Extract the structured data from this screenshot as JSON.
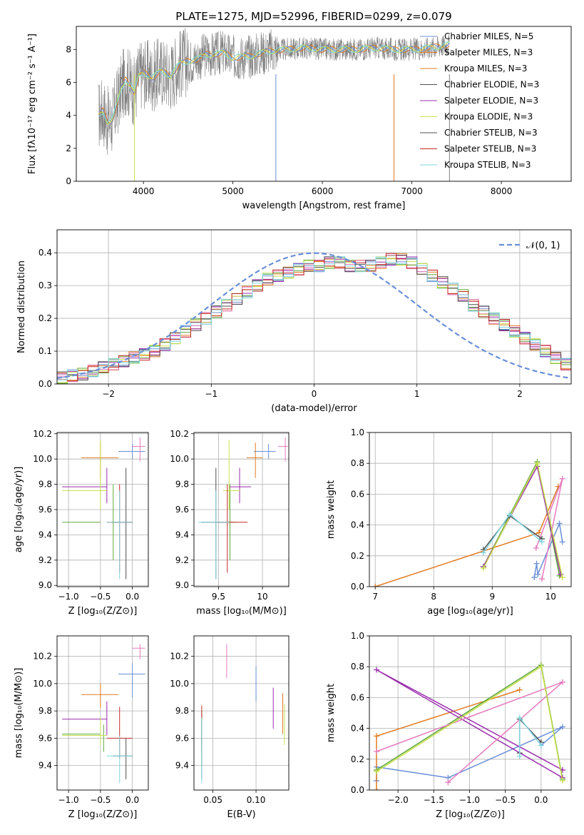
{
  "figure_title": "PLATE=1275, MJD=52996, FIBERID=0299, z=0.079",
  "colors": {
    "blue": "#6a8fd8",
    "orange": "#e07b22",
    "green": "#5ea83a",
    "purple": "#9b2fae",
    "pink": "#e57bbf",
    "yellow": "#c8e04c",
    "darkgray": "#505050",
    "red": "#c62828",
    "cyan": "#7fd6e0",
    "gray": "#808080"
  },
  "chart_data": [
    {
      "id": "spectrum",
      "type": "line",
      "title": "PLATE=1275, MJD=52996, FIBERID=0299, z=0.079",
      "xlabel": "wavelength [Angstrom, rest frame]",
      "ylabel": "Flux [fλ10⁻¹⁷ erg cm⁻² s⁻¹ A⁻¹]",
      "xlim": [
        3250,
        8780
      ],
      "ylim": [
        0,
        9.4
      ],
      "xticks": [
        4000,
        5000,
        6000,
        7000,
        8000
      ],
      "yticks": [
        0,
        2,
        4,
        6,
        8
      ],
      "grid": false,
      "legend_position": "right",
      "legend": [
        {
          "label": "Chabrier MILES, N_SSP=5",
          "color": "#6a8fd8"
        },
        {
          "label": "Salpeter MILES, N_SSP=3",
          "color": "#e07b22"
        },
        {
          "label": "Kroupa MILES, N_SSP=3",
          "color": "#e07b22"
        },
        {
          "label": "Chabrier ELODIE, N_SSP=3",
          "color": "#505050"
        },
        {
          "label": "Salpeter ELODIE, N_SSP=3",
          "color": "#9b2fae"
        },
        {
          "label": "Kroupa ELODIE, N_SSP=3",
          "color": "#c8e04c"
        },
        {
          "label": "Chabrier STELIB, N_SSP=3",
          "color": "#505050"
        },
        {
          "label": "Salpeter STELIB, N_SSP=3",
          "color": "#c62828"
        },
        {
          "label": "Kroupa STELIB, N_SSP=3",
          "color": "#7fd6e0"
        }
      ],
      "model_curve": {
        "x": [
          3500,
          3550,
          3600,
          3650,
          3700,
          3750,
          3800,
          3850,
          3900,
          3950,
          4000,
          4100,
          4200,
          4300,
          4400,
          4500,
          4600,
          4700,
          4800,
          4900,
          5000,
          5200,
          5400,
          5600,
          5800,
          6000,
          6200,
          6400,
          6600,
          6800,
          7000,
          7200,
          7420
        ],
        "y": [
          4.0,
          4.3,
          3.6,
          3.7,
          4.6,
          5.6,
          6.2,
          5.9,
          5.4,
          6.4,
          6.6,
          6.3,
          6.7,
          6.4,
          7.1,
          7.3,
          7.4,
          7.7,
          7.7,
          7.8,
          7.5,
          7.6,
          7.9,
          8.0,
          8.1,
          8.0,
          8.0,
          8.0,
          8.1,
          8.0,
          8.0,
          8.1,
          8.3
        ]
      },
      "data_curve_note_hidden": null
    },
    {
      "id": "residuals",
      "type": "line",
      "xlabel": "(data-model)/error",
      "ylabel": "Normed distribution",
      "xlim": [
        -2.5,
        2.5
      ],
      "ylim": [
        0,
        0.47
      ],
      "xticks": [
        -2,
        -1,
        0,
        1,
        2
      ],
      "xtick_labels": [
        "−2",
        "−1",
        "0",
        "1",
        "2"
      ],
      "yticks": [
        0.0,
        0.1,
        0.2,
        0.3,
        0.4
      ],
      "grid": true,
      "legend_position": "top-right",
      "legend": [
        {
          "label": "𝒩(0, 1)",
          "color": "#6a8fd8",
          "style": "dashed"
        }
      ],
      "reference_curve": {
        "name": "N(0,1)",
        "mu": 0,
        "sigma": 1
      }
    },
    {
      "id": "age-vs-Z",
      "type": "scatter",
      "xlabel": "Z [log₁₀(Z/Z⊙)]",
      "ylabel": "age  [log₁₀(age/yr)]",
      "xlim": [
        -1.18,
        0.25
      ],
      "ylim": [
        8.99,
        10.21
      ],
      "xticks": [
        -1.0,
        -0.5,
        0.0
      ],
      "xtick_labels": [
        "−1.0",
        "−0.5",
        "0.0"
      ],
      "yticks": [
        9.0,
        9.2,
        9.4,
        9.6,
        9.8,
        10.0,
        10.2
      ],
      "grid": true
    },
    {
      "id": "age-vs-mass",
      "type": "scatter",
      "xlabel": "mass [log₁₀(M/M⊙)]",
      "xlim": [
        9.22,
        10.3
      ],
      "ylim": [
        8.99,
        10.21
      ],
      "xticks": [
        9.5,
        10.0
      ],
      "yticks": [
        9.0,
        9.2,
        9.4,
        9.6,
        9.8,
        10.0,
        10.2
      ],
      "grid": true
    },
    {
      "id": "weight-vs-age",
      "type": "line",
      "xlabel": "age  [log₁₀(age/yr)]",
      "ylabel": "mass weight",
      "xlim": [
        6.9,
        10.35
      ],
      "ylim": [
        0,
        1.0
      ],
      "xticks": [
        7,
        8,
        9,
        10
      ],
      "yticks": [
        0.0,
        0.2,
        0.4,
        0.6,
        0.8,
        1.0
      ],
      "grid": true
    },
    {
      "id": "mass-vs-Z",
      "type": "scatter",
      "xlabel": "Z [log₁₀(Z/Z⊙)]",
      "ylabel": "mass [log₁₀(M/M⊙)]",
      "xlim": [
        -1.18,
        0.25
      ],
      "ylim": [
        9.22,
        10.35
      ],
      "xticks": [
        -1.0,
        -0.5,
        0.0
      ],
      "xtick_labels": [
        "−1.0",
        "−0.5",
        "0.0"
      ],
      "yticks": [
        9.4,
        9.6,
        9.8,
        10.0,
        10.2
      ],
      "grid": true
    },
    {
      "id": "mass-vs-EBV",
      "type": "scatter",
      "xlabel": "E(B-V)",
      "xlim": [
        0.028,
        0.138
      ],
      "ylim": [
        9.22,
        10.35
      ],
      "xticks": [
        0.05,
        0.1
      ],
      "xtick_labels": [
        "0.05",
        "0.10"
      ],
      "yticks": [
        9.4,
        9.6,
        9.8,
        10.0,
        10.2
      ],
      "grid": true
    },
    {
      "id": "weight-vs-Z",
      "type": "line",
      "xlabel": "Z [log₁₀(Z/Z⊙)]",
      "ylabel": "mass weight",
      "xlim": [
        -2.4,
        0.42
      ],
      "ylim": [
        0,
        1.0
      ],
      "xticks": [
        -2.0,
        -1.5,
        -1.0,
        -0.5,
        0.0
      ],
      "xtick_labels": [
        "−2.0",
        "−1.5",
        "−1.0",
        "−0.5",
        "0.0"
      ],
      "yticks": [
        0.0,
        0.2,
        0.4,
        0.6,
        0.8,
        1.0
      ],
      "grid": true
    }
  ],
  "fits": [
    {
      "color": "#6a8fd8",
      "age": 10.06,
      "age_err": [
        10.0,
        10.12
      ],
      "Z": 0.0,
      "Z_err": [
        -0.22,
        0.2
      ],
      "mass": 10.07,
      "mass_err": [
        9.9,
        10.15
      ],
      "mass_Z": 0.0,
      "ebv": 0.1,
      "ebv_range": [
        9.87,
        10.13
      ],
      "ssp": [
        {
          "age": 9.72,
          "Z": -2.3,
          "w": 0.06
        },
        {
          "age": 9.76,
          "Z": -2.3,
          "w": 0.15
        },
        {
          "age": 9.78,
          "Z": -1.3,
          "w": 0.08
        },
        {
          "age": 10.15,
          "Z": 0.3,
          "w": 0.41
        },
        {
          "age": 10.2,
          "Z": 0.0,
          "w": 0.29
        }
      ]
    },
    {
      "color": "#e07b22",
      "age": 10.01,
      "age_err": [
        9.85,
        10.13
      ],
      "Z": -0.5,
      "Z_err": [
        -0.8,
        -0.22
      ],
      "mass": 9.92,
      "mass_err": [
        9.82,
        10.0
      ],
      "mass_Z": -0.5,
      "ebv": 0.131,
      "ebv_range": [
        9.63,
        9.93
      ],
      "ssp": [
        {
          "age": 7.0,
          "Z": -2.3,
          "w": 0.0
        },
        {
          "age": 9.8,
          "Z": -2.3,
          "w": 0.35
        },
        {
          "age": 10.13,
          "Z": -0.3,
          "w": 0.65
        }
      ]
    },
    {
      "color": "#5ea83a",
      "age": 9.5,
      "age_err": [
        9.2,
        9.8
      ],
      "Z": -0.3,
      "Z_err": [
        -1.1,
        -0.5
      ],
      "mass": 9.63,
      "mass_err": [
        9.5,
        9.7
      ],
      "mass_Z": -0.45,
      "ebv": 0.037,
      "ebv_range": [
        9.4,
        9.8
      ],
      "ssp": [
        {
          "age": 8.85,
          "Z": -2.3,
          "w": 0.13
        },
        {
          "age": 9.77,
          "Z": 0.0,
          "w": 0.81
        },
        {
          "age": 10.15,
          "Z": 0.3,
          "w": 0.07
        }
      ]
    },
    {
      "color": "#9b2fae",
      "age": 9.78,
      "age_err": [
        9.65,
        9.93
      ],
      "Z": -0.4,
      "Z_err": [
        -1.1,
        -0.4
      ],
      "mass": 9.74,
      "mass_err": [
        9.62,
        9.87
      ],
      "mass_Z": -0.4,
      "ebv": 0.12,
      "ebv_range": [
        9.67,
        9.97
      ],
      "ssp": [
        {
          "age": 8.85,
          "Z": 0.3,
          "w": 0.13
        },
        {
          "age": 9.77,
          "Z": -2.3,
          "w": 0.78
        },
        {
          "age": 10.17,
          "Z": 0.3,
          "w": 0.08
        }
      ]
    },
    {
      "color": "#e57bbf",
      "age": 10.1,
      "age_err": [
        9.98,
        10.17
      ],
      "Z": 0.12,
      "Z_err": [
        0.0,
        0.2
      ],
      "mass": 10.26,
      "mass_err": [
        10.18,
        10.29
      ],
      "mass_Z": 0.12,
      "ebv": 0.066,
      "ebv_range": [
        10.04,
        10.29
      ],
      "ssp": [
        {
          "age": 9.85,
          "Z": -1.3,
          "w": 0.05
        },
        {
          "age": 10.2,
          "Z": 0.3,
          "w": 0.7
        },
        {
          "age": 9.75,
          "Z": -2.3,
          "w": 0.25
        }
      ]
    },
    {
      "color": "#c8e04c",
      "age": 9.75,
      "age_err": [
        9.6,
        10.15
      ],
      "Z": -0.5,
      "Z_err": [
        -1.1,
        -0.4
      ],
      "mass": 9.62,
      "mass_err": [
        9.55,
        9.75
      ],
      "mass_Z": -0.5,
      "ebv": 0.133,
      "ebv_range": [
        9.55,
        9.85
      ],
      "ssp": [
        {
          "age": 8.85,
          "Z": -2.3,
          "w": 0.12
        },
        {
          "age": 9.77,
          "Z": 0.0,
          "w": 0.8
        },
        {
          "age": 10.2,
          "Z": 0.3,
          "w": 0.06
        }
      ]
    },
    {
      "color": "#505050",
      "age": 9.5,
      "age_err": [
        9.05,
        9.93
      ],
      "Z": -0.1,
      "Z_err": [
        -0.3,
        0.0
      ],
      "mass": 9.47,
      "mass_err": [
        9.3,
        9.6
      ],
      "mass_Z": -0.1,
      "ebv": 0.037,
      "ebv_range": [
        9.3,
        9.75
      ],
      "ssp": [
        {
          "age": 8.85,
          "Z": -0.3,
          "w": 0.24
        },
        {
          "age": 9.3,
          "Z": -0.3,
          "w": 0.46
        },
        {
          "age": 9.85,
          "Z": 0.0,
          "w": 0.31
        }
      ]
    },
    {
      "color": "#c62828",
      "age": 9.5,
      "age_err": [
        9.1,
        9.8
      ],
      "Z": -0.2,
      "Z_err": [
        -0.4,
        0.0
      ],
      "mass": 9.6,
      "mass_err": [
        9.45,
        9.83
      ],
      "mass_Z": -0.2,
      "ebv": 0.037,
      "ebv_range": [
        9.5,
        9.84
      ],
      "ssp": []
    },
    {
      "color": "#7fd6e0",
      "age": 9.5,
      "age_err": [
        9.05,
        9.75
      ],
      "Z": -0.2,
      "Z_err": [
        -0.4,
        0.0
      ],
      "mass": 9.47,
      "mass_err": [
        9.27,
        9.62
      ],
      "mass_Z": -0.2,
      "ebv": 0.037,
      "ebv_range": [
        9.27,
        9.75
      ],
      "ssp": [
        {
          "age": 8.85,
          "Z": -0.3,
          "w": 0.22
        },
        {
          "age": 9.3,
          "Z": -0.3,
          "w": 0.47
        },
        {
          "age": 9.85,
          "Z": 0.0,
          "w": 0.29
        }
      ]
    }
  ],
  "residual_hist": {
    "bin_width": 0.1,
    "bins_start": -2.5,
    "shape_values": [
      0.02,
      0.025,
      0.03,
      0.04,
      0.05,
      0.06,
      0.07,
      0.08,
      0.09,
      0.1,
      0.12,
      0.14,
      0.16,
      0.18,
      0.2,
      0.22,
      0.24,
      0.26,
      0.28,
      0.3,
      0.32,
      0.33,
      0.34,
      0.35,
      0.36,
      0.36,
      0.37,
      0.37,
      0.36,
      0.36,
      0.36,
      0.37,
      0.38,
      0.38,
      0.37,
      0.35,
      0.33,
      0.31,
      0.29,
      0.27,
      0.24,
      0.22,
      0.2,
      0.18,
      0.16,
      0.14,
      0.12,
      0.1,
      0.08,
      0.06
    ]
  }
}
